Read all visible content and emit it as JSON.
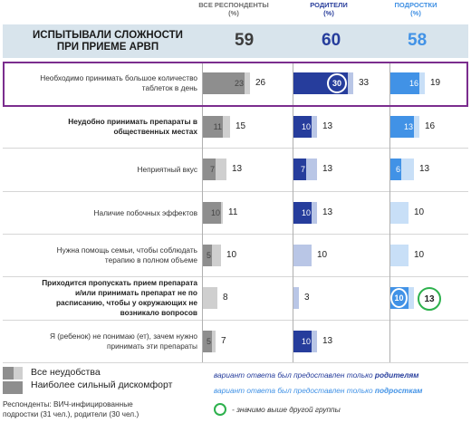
{
  "header": {
    "col_all": "ВСЕ РЕСПОНДЕНТЫ",
    "col_parents": "РОДИТЕЛИ",
    "col_teens": "ПОДРОСТКИ",
    "unit": "(%)",
    "title_line1": "ИСПЫТЫВАЛИ СЛОЖНОСТИ",
    "title_line2": "ПРИ ПРИЕМЕ АРВП",
    "total_all": "59",
    "total_parents": "60",
    "total_teens": "58"
  },
  "colors": {
    "all_total": "#cfcfcf",
    "all_strong": "#8e8e8e",
    "parents_total": "#b9c6e6",
    "parents_strong": "#263d9c",
    "teens_total": "#c8dff7",
    "teens_strong": "#4192e6",
    "highlight": "#7b2d8e",
    "significant": "#2db14d",
    "band": "#d8e4ec"
  },
  "chart_data": {
    "type": "bar",
    "orientation": "horizontal",
    "categories": [
      "Необходимо принимать большое количество таблеток в день",
      "Неудобно принимать препараты в общественных местах",
      "Неприятный вкус",
      "Наличие побочных эффектов",
      "Нужна помощь семьи, чтобы соблюдать терапию в полном объеме",
      "Приходится пропускать прием препарата и/или принимать препарат не по расписанию, чтобы у окружающих не возникало вопросов",
      "Я (ребенок) не понимаю (ет), зачем нужно принимать эти препараты"
    ],
    "label_lines": [
      [
        "Необходимо принимать большое количество",
        "таблеток в день"
      ],
      [
        "Неудобно принимать препараты в",
        "общественных местах"
      ],
      [
        "Неприятный вкус"
      ],
      [
        "Наличие побочных эффектов"
      ],
      [
        "Нужна помощь семьи, чтобы соблюдать",
        "терапию в полном объеме"
      ],
      [
        "Приходится пропускать прием препарата",
        "и/или принимать препарат не по",
        "расписанию, чтобы у окружающих не",
        "возникало вопросов"
      ],
      [
        "Я (ребенок)  не понимаю (ет), зачем нужно",
        "принимать эти препараты"
      ]
    ],
    "bold_rows": [
      1,
      5
    ],
    "unit": "%",
    "groups": [
      {
        "name": "ВСЕ РЕСПОНДЕНТЫ",
        "total": [
          26,
          15,
          13,
          11,
          10,
          8,
          7
        ],
        "strong": [
          23,
          11,
          7,
          10,
          5,
          null,
          5
        ]
      },
      {
        "name": "РОДИТЕЛИ",
        "total": [
          33,
          13,
          13,
          13,
          10,
          3,
          13
        ],
        "strong": [
          30,
          10,
          7,
          10,
          null,
          null,
          10
        ]
      },
      {
        "name": "ПОДРОСТКИ",
        "total": [
          19,
          16,
          13,
          10,
          10,
          13,
          null
        ],
        "strong": [
          16,
          13,
          6,
          null,
          null,
          10,
          null
        ]
      }
    ],
    "significant": [
      {
        "group": 1,
        "row": 0
      },
      {
        "group": 2,
        "row": 5
      }
    ],
    "series": [
      {
        "name": "Все неудобства"
      },
      {
        "name": "Наиболее сильный дискомфорт"
      }
    ]
  },
  "legend": {
    "all": "Все неудобства",
    "strong": "Наиболее сильный дискомфорт"
  },
  "notes": {
    "parents_prefix": "вариант ответа был предоставлен только ",
    "parents_bold": "родителям",
    "teens_prefix": "вариант ответа был предоставлен только ",
    "teens_bold": "подросткам",
    "circle": "- значимо выше другой группы"
  },
  "footer": {
    "line1": "Респонденты: ВИЧ-инфицированные",
    "line2": "подростки (31 чел.), родители (30 чел.)"
  }
}
